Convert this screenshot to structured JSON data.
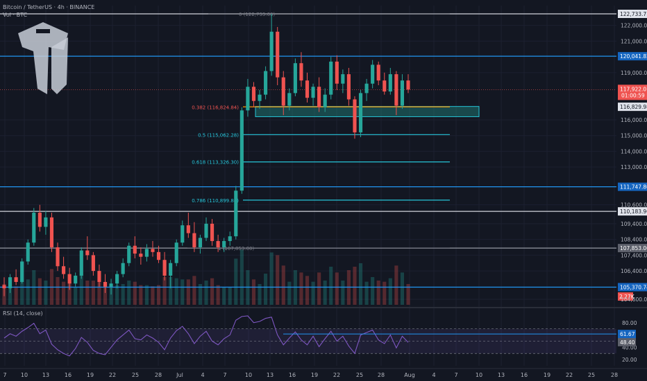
{
  "header": {
    "title": "Bitcoin / TetherUS · 4h · BINANCE",
    "volume_label": "Vol · BTC"
  },
  "rsi_label": "RSI (14, close)",
  "colors": {
    "background": "#131722",
    "up": "#26a69a",
    "down": "#ef5350",
    "blue_line": "#2962ff",
    "fib": "#26c6da",
    "fib_red": "#ef5350",
    "rsi": "#7e57c2",
    "white": "#d1d4dc"
  },
  "chart_data": {
    "type": "candlestick",
    "price_axis": {
      "min": 104600,
      "max": 122733.71,
      "ticks": [
        "122,000.00",
        "121,000.00",
        "119,000.00",
        "116,000.00",
        "115,000.00",
        "114,000.00",
        "113,000.00",
        "110,600.00",
        "109,400.00",
        "108,400.00",
        "107,400.00",
        "106,400.00",
        "104,600.00"
      ]
    },
    "x_axis": {
      "ticks": [
        "7",
        "10",
        "13",
        "16",
        "19",
        "22",
        "25",
        "28",
        "Jul",
        "4",
        "7",
        "10",
        "13",
        "16",
        "19",
        "22",
        "25",
        "28",
        "Aug",
        "4",
        "7",
        "10",
        "13",
        "16",
        "19",
        "22",
        "25",
        "28"
      ]
    },
    "horizontal_levels": [
      {
        "label": "122,733.71",
        "color": "white",
        "price": 122733.71
      },
      {
        "label": "120,041.82",
        "color": "blue",
        "price": 120041.82
      },
      {
        "label": "111,747.80",
        "color": "blue",
        "price": 111747.8
      },
      {
        "label": "110,183.96",
        "color": "white",
        "price": 110183.96
      },
      {
        "label": "107,853.00",
        "color": "gray",
        "price": 107853.0
      },
      {
        "label": "105,370.74",
        "color": "blue",
        "price": 105370.74
      }
    ],
    "fib_levels": [
      {
        "label": "0 (122,733.00)",
        "price": 122733.0,
        "color": "white"
      },
      {
        "label": "0.382 (116,824.84)",
        "price": 116824.84,
        "color": "orange"
      },
      {
        "label": "0.5 (115,062.28)",
        "price": 115062.28,
        "color": "teal"
      },
      {
        "label": "0.618 (113,326.30)",
        "price": 113326.3,
        "color": "teal"
      },
      {
        "label": "0.786 (110,899.84)",
        "price": 110899.84,
        "color": "teal"
      },
      {
        "label": "1 (107,853.00)",
        "price": 107853.0,
        "color": "gray"
      }
    ],
    "current_price": {
      "label": "117,922.01",
      "countdown": "01:00:59",
      "price": 117922.01
    },
    "marker_price": {
      "label": "116,829.98",
      "price": 116829.98
    },
    "zone": {
      "from": 116200,
      "to": 116850
    },
    "volume_label": "2.27K",
    "rsi": {
      "axis_ticks": [
        "80.00",
        "40.00",
        "20.00"
      ],
      "value_label": "48.40",
      "level_label": "61.67",
      "upper": 70,
      "lower": 30
    },
    "candles": [
      [
        105500,
        106000,
        104800,
        105300
      ],
      [
        105300,
        106200,
        105000,
        106000
      ],
      [
        106000,
        106500,
        105500,
        105700
      ],
      [
        105700,
        107200,
        105600,
        107000
      ],
      [
        107000,
        108400,
        106800,
        108200
      ],
      [
        108200,
        110400,
        108000,
        110100
      ],
      [
        110100,
        110600,
        108900,
        109200
      ],
      [
        109200,
        110200,
        108700,
        109800
      ],
      [
        109800,
        110100,
        107600,
        107900
      ],
      [
        107900,
        108200,
        106400,
        106700
      ],
      [
        106700,
        107300,
        105900,
        106200
      ],
      [
        106200,
        106600,
        105200,
        105600
      ],
      [
        105600,
        106300,
        105400,
        106100
      ],
      [
        106100,
        107900,
        105900,
        107700
      ],
      [
        107700,
        108600,
        107100,
        107400
      ],
      [
        107400,
        107600,
        106100,
        106400
      ],
      [
        106400,
        106800,
        105400,
        105700
      ],
      [
        105700,
        106200,
        105000,
        105400
      ],
      [
        105400,
        105900,
        104900,
        105600
      ],
      [
        105600,
        106400,
        105300,
        106200
      ],
      [
        106200,
        107200,
        106000,
        106900
      ],
      [
        106900,
        108200,
        106700,
        108000
      ],
      [
        108000,
        108600,
        107200,
        107500
      ],
      [
        107500,
        107900,
        106800,
        107300
      ],
      [
        107300,
        108100,
        107000,
        107800
      ],
      [
        107800,
        108300,
        107300,
        107600
      ],
      [
        107600,
        108000,
        106900,
        107100
      ],
      [
        107100,
        107600,
        105800,
        106100
      ],
      [
        106100,
        107100,
        105300,
        106900
      ],
      [
        106900,
        108400,
        106700,
        108200
      ],
      [
        108200,
        109600,
        108000,
        109300
      ],
      [
        109300,
        110100,
        108500,
        108800
      ],
      [
        108800,
        109500,
        107600,
        107900
      ],
      [
        107900,
        108700,
        107500,
        108500
      ],
      [
        108500,
        109800,
        108300,
        109400
      ],
      [
        109400,
        109700,
        108000,
        108300
      ],
      [
        108300,
        108700,
        107600,
        107900
      ],
      [
        107900,
        108500,
        107600,
        108300
      ],
      [
        108300,
        108900,
        108000,
        108600
      ],
      [
        108600,
        111800,
        108400,
        111500
      ],
      [
        111500,
        116800,
        111300,
        116600
      ],
      [
        116600,
        118600,
        116200,
        118100
      ],
      [
        118100,
        118400,
        116800,
        117200
      ],
      [
        117200,
        117900,
        116700,
        117600
      ],
      [
        117600,
        119400,
        117300,
        119100
      ],
      [
        119100,
        122733,
        118800,
        121600
      ],
      [
        121600,
        121900,
        118200,
        118700
      ],
      [
        118700,
        119100,
        116300,
        116900
      ],
      [
        116900,
        118000,
        116600,
        117700
      ],
      [
        117700,
        119900,
        117500,
        119600
      ],
      [
        119600,
        120300,
        118100,
        118500
      ],
      [
        118500,
        119000,
        117100,
        117400
      ],
      [
        117400,
        118300,
        116900,
        118100
      ],
      [
        118100,
        118700,
        116500,
        116800
      ],
      [
        116800,
        118000,
        116500,
        117600
      ],
      [
        117600,
        120000,
        117300,
        119700
      ],
      [
        119700,
        120100,
        117900,
        118300
      ],
      [
        118300,
        119200,
        117700,
        118900
      ],
      [
        118900,
        119300,
        116900,
        117300
      ],
      [
        117300,
        117500,
        114800,
        115200
      ],
      [
        115200,
        117900,
        114900,
        117700
      ],
      [
        117700,
        118600,
        117200,
        118300
      ],
      [
        118300,
        119800,
        118000,
        119500
      ],
      [
        119500,
        119700,
        118200,
        118500
      ],
      [
        118500,
        119000,
        117600,
        117800
      ],
      [
        117800,
        119300,
        117600,
        118900
      ],
      [
        118900,
        119100,
        116300,
        116900
      ],
      [
        116900,
        118900,
        116700,
        118500
      ],
      [
        118500,
        118900,
        117700,
        117922
      ]
    ],
    "rsi_values": [
      55,
      62,
      58,
      66,
      72,
      79,
      62,
      68,
      45,
      36,
      30,
      26,
      38,
      56,
      48,
      35,
      30,
      28,
      40,
      52,
      60,
      68,
      54,
      52,
      60,
      55,
      48,
      36,
      55,
      67,
      74,
      62,
      46,
      58,
      66,
      50,
      44,
      54,
      60,
      84,
      90,
      91,
      80,
      82,
      87,
      89,
      60,
      44,
      55,
      65,
      52,
      44,
      58,
      41,
      54,
      66,
      50,
      58,
      42,
      30,
      60,
      64,
      68,
      52,
      46,
      60,
      39,
      58,
      48
    ]
  }
}
